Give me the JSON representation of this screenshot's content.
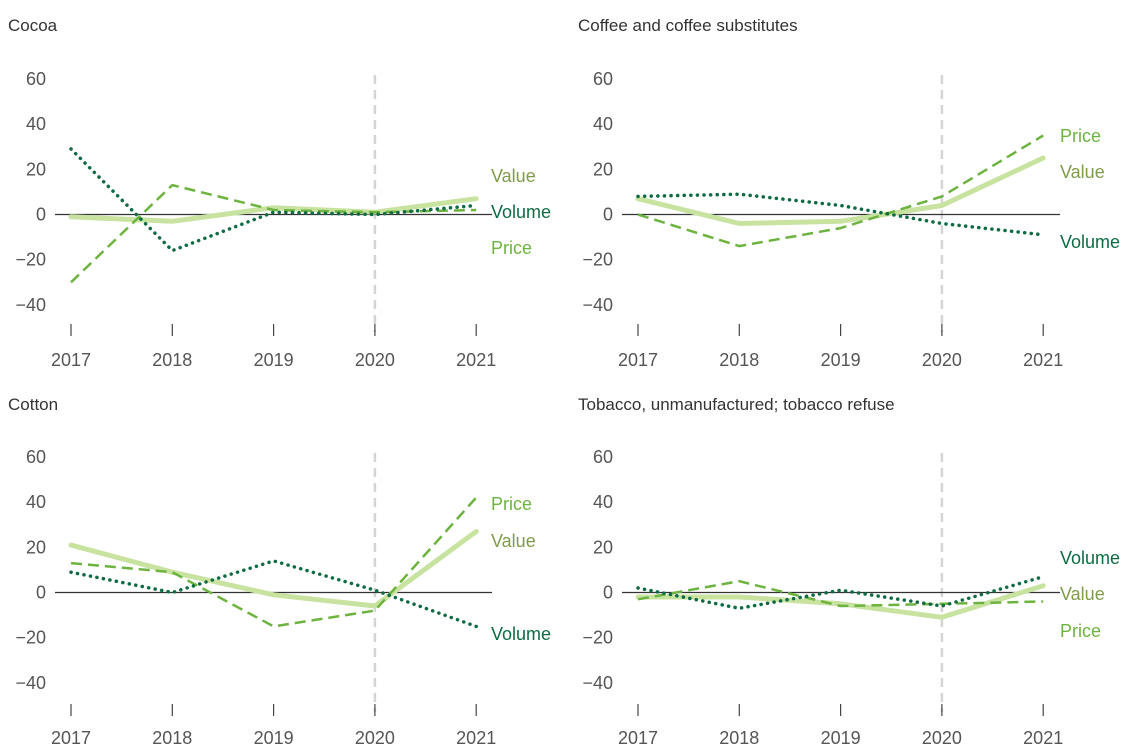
{
  "colors": {
    "value": "#c8e3a0",
    "price": "#6db33f",
    "volume": "#0e6b43",
    "value_label": "#7f9c4d",
    "price_label": "#6db33f",
    "volume_label": "#0e6b43",
    "zero_line": "#333333",
    "marker_line": "#d4d4d4",
    "text": "#555555"
  },
  "chart_data": [
    {
      "type": "line",
      "title": "Cocoa",
      "x": [
        "2017",
        "2018",
        "2019",
        "2020",
        "2021"
      ],
      "yticks": [
        "60",
        "40",
        "20",
        "0",
        "−20",
        "−40"
      ],
      "ylim": [
        -40,
        60
      ],
      "series": [
        {
          "name": "Value",
          "style": "solid",
          "values": [
            -1,
            -3,
            3,
            1,
            7
          ]
        },
        {
          "name": "Price",
          "style": "dashed",
          "values": [
            -30,
            13,
            2,
            1,
            2
          ]
        },
        {
          "name": "Volume",
          "style": "dotted",
          "values": [
            29,
            -16,
            1,
            0,
            4
          ]
        }
      ]
    },
    {
      "type": "line",
      "title": "Coffee and coffee substitutes",
      "x": [
        "2017",
        "2018",
        "2019",
        "2020",
        "2021"
      ],
      "yticks": [
        "60",
        "40",
        "20",
        "0",
        "−20",
        "−40"
      ],
      "ylim": [
        -40,
        60
      ],
      "series": [
        {
          "name": "Value",
          "style": "solid",
          "values": [
            7,
            -4,
            -3,
            4,
            25
          ]
        },
        {
          "name": "Price",
          "style": "dashed",
          "values": [
            0,
            -14,
            -6,
            8,
            35
          ]
        },
        {
          "name": "Volume",
          "style": "dotted",
          "values": [
            8,
            9,
            4,
            -4,
            -9
          ]
        }
      ]
    },
    {
      "type": "line",
      "title": "Cotton",
      "x": [
        "2017",
        "2018",
        "2019",
        "2020",
        "2021"
      ],
      "yticks": [
        "60",
        "40",
        "20",
        "0",
        "−20",
        "−40"
      ],
      "ylim": [
        -40,
        60
      ],
      "series": [
        {
          "name": "Value",
          "style": "solid",
          "values": [
            21,
            9,
            -1,
            -6,
            27
          ]
        },
        {
          "name": "Price",
          "style": "dashed",
          "values": [
            13,
            9,
            -15,
            -8,
            42
          ]
        },
        {
          "name": "Volume",
          "style": "dotted",
          "values": [
            9,
            0,
            14,
            1,
            -15
          ]
        }
      ]
    },
    {
      "type": "line",
      "title": "Tobacco, unmanufactured; tobacco refuse",
      "x": [
        "2017",
        "2018",
        "2019",
        "2020",
        "2021"
      ],
      "yticks": [
        "60",
        "40",
        "20",
        "0",
        "−20",
        "−40"
      ],
      "ylim": [
        -40,
        60
      ],
      "series": [
        {
          "name": "Value",
          "style": "solid",
          "values": [
            -2,
            -2,
            -5,
            -11,
            3
          ]
        },
        {
          "name": "Price",
          "style": "dashed",
          "values": [
            -3,
            5,
            -6,
            -5,
            -4
          ]
        },
        {
          "name": "Volume",
          "style": "dotted",
          "values": [
            2,
            -7,
            1,
            -6,
            7
          ]
        }
      ]
    }
  ]
}
